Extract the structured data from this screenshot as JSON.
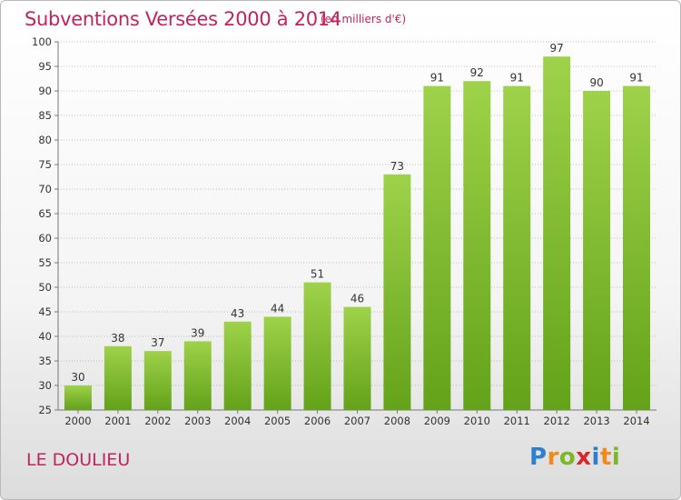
{
  "header": {
    "title": "Subventions Versées 2000 à 2014",
    "subtitle": "(en milliers d'€)"
  },
  "footer": {
    "city": "LE DOULIEU",
    "logo_letters": [
      "P",
      "r",
      "o",
      "x",
      "i",
      "t",
      "i"
    ],
    "logo_colors": [
      "#2f7fcf",
      "#f08a1c",
      "#7ab829",
      "#d8282a",
      "#2f7fcf",
      "#f08a1c",
      "#7ab829"
    ]
  },
  "colors": {
    "bar_top": "#9ed24a",
    "bar_bottom": "#63a21a",
    "text": "#c0245c",
    "grid": "#888888"
  },
  "chart_data": {
    "type": "bar",
    "categories": [
      "2000",
      "2001",
      "2002",
      "2003",
      "2004",
      "2005",
      "2006",
      "2007",
      "2008",
      "2009",
      "2010",
      "2011",
      "2012",
      "2013",
      "2014"
    ],
    "values": [
      30,
      38,
      37,
      39,
      43,
      44,
      51,
      46,
      73,
      91,
      92,
      91,
      97,
      90,
      91
    ],
    "ylim": [
      25,
      100
    ],
    "yticks": [
      25,
      30,
      35,
      40,
      45,
      50,
      55,
      60,
      65,
      70,
      75,
      80,
      85,
      90,
      95,
      100
    ],
    "grid": true
  }
}
